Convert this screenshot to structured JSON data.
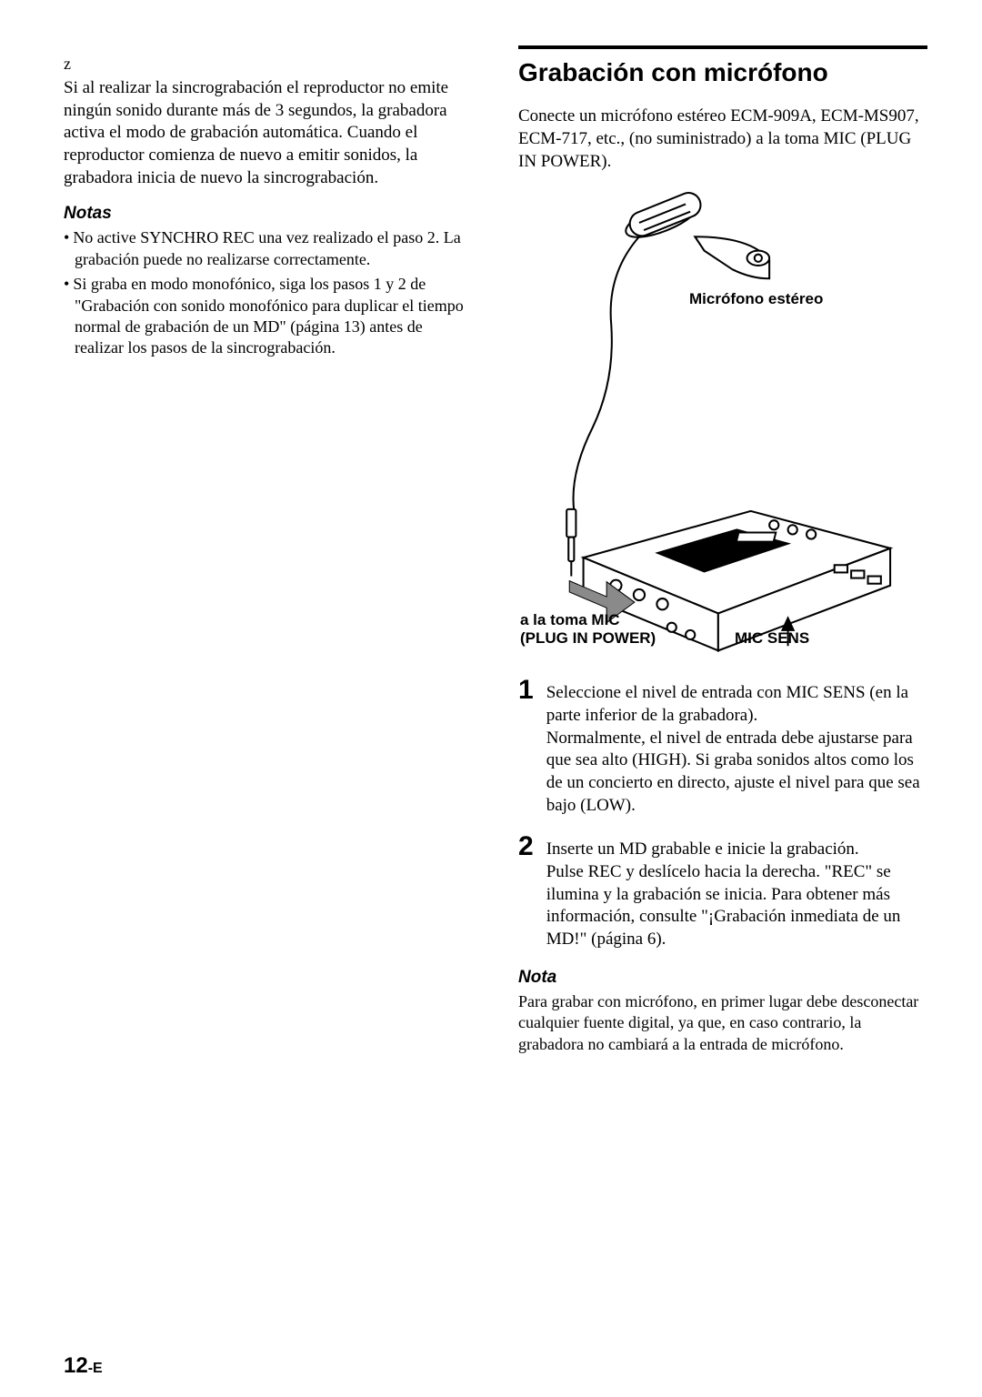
{
  "left": {
    "z": "z",
    "para": "Si al realizar la sincrograbación el reproductor no emite ningún sonido durante más de 3 segundos, la grabadora activa el modo de grabación automática. Cuando el reproductor comienza de nuevo a emitir sonidos, la grabadora inicia de nuevo la sincrograbación.",
    "notas_heading": "Notas",
    "notes": [
      "No active SYNCHRO REC una vez realizado el paso 2. La grabación puede no realizarse correctamente.",
      "Si graba en modo monofónico, siga los pasos 1 y 2 de \"Grabación con sonido monofónico para duplicar el tiempo normal de grabación de un MD\" (página 13) antes de realizar los pasos de la sincrograbación."
    ]
  },
  "right": {
    "title": "Grabación con micrófono",
    "intro": "Conecte un micrófono estéreo ECM-909A, ECM-MS907, ECM-717, etc., (no suministrado) a la toma MIC (PLUG IN POWER).",
    "diagram": {
      "label_mic": "Micrófono estéreo",
      "label_jack1": "a la toma MIC",
      "label_jack2": "(PLUG IN POWER)",
      "label_sens": "MIC SENS",
      "colors": {
        "stroke": "#000000",
        "fill_arrow": "#8a8a8a",
        "bg": "#ffffff"
      }
    },
    "steps": [
      {
        "num": "1",
        "text": "Seleccione el nivel de entrada con MIC SENS (en la parte inferior de la grabadora).\nNormalmente, el nivel de entrada debe ajustarse para que sea alto (HIGH). Si graba sonidos altos como los de un concierto en directo, ajuste el nivel para que sea bajo (LOW)."
      },
      {
        "num": "2",
        "text": "Inserte un MD grabable e inicie la grabación.\nPulse REC y deslícelo hacia la derecha. \"REC\" se ilumina y la grabación se inicia. Para obtener más información, consulte \"¡Grabación inmediata de un MD!\" (página 6)."
      }
    ],
    "nota_heading": "Nota",
    "nota_text": "Para grabar con micrófono, en primer lugar debe desconectar cualquier fuente digital, ya que, en caso contrario, la grabadora no cambiará a la entrada de micrófono."
  },
  "page_number": "12",
  "page_suffix": "-E"
}
